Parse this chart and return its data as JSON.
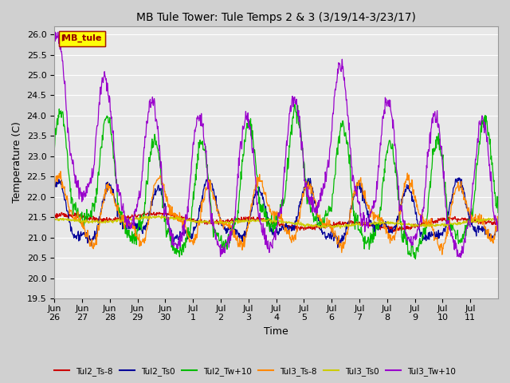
{
  "title": "MB Tule Tower: Tule Temps 2 & 3 (3/19/14-3/23/17)",
  "xlabel": "Time",
  "ylabel": "Temperature (C)",
  "ylim": [
    19.5,
    26.2
  ],
  "yticks": [
    19.5,
    20.0,
    20.5,
    21.0,
    21.5,
    22.0,
    22.5,
    23.0,
    23.5,
    24.0,
    24.5,
    25.0,
    25.5,
    26.0
  ],
  "legend_label": "MB_tule",
  "legend_box_color": "#ffff00",
  "legend_box_edge": "#990000",
  "series_labels": [
    "Tul2_Ts-8",
    "Tul2_Ts0",
    "Tul2_Tw+10",
    "Tul3_Ts-8",
    "Tul3_Ts0",
    "Tul3_Tw+10"
  ],
  "series_colors": [
    "#cc0000",
    "#000099",
    "#00bb00",
    "#ff8800",
    "#cccc00",
    "#9900cc"
  ],
  "fig_bg_color": "#d0d0d0",
  "plot_bg_color": "#e8e8e8",
  "grid_color": "#ffffff",
  "title_fontsize": 10,
  "axis_label_fontsize": 9,
  "tick_label_fontsize": 8,
  "x_tick_labels": [
    "Jun 26",
    "Jun 27",
    "Jun 28",
    "Jun 29",
    "Jun 30",
    "Jul 1",
    "Jul 2",
    "Jul 3",
    "Jul 4",
    "Jul 5",
    "Jul 6",
    "Jul 7",
    "Jul 8",
    "Jul 9",
    "Jul 10",
    "Jul 11"
  ],
  "n_points": 1000
}
